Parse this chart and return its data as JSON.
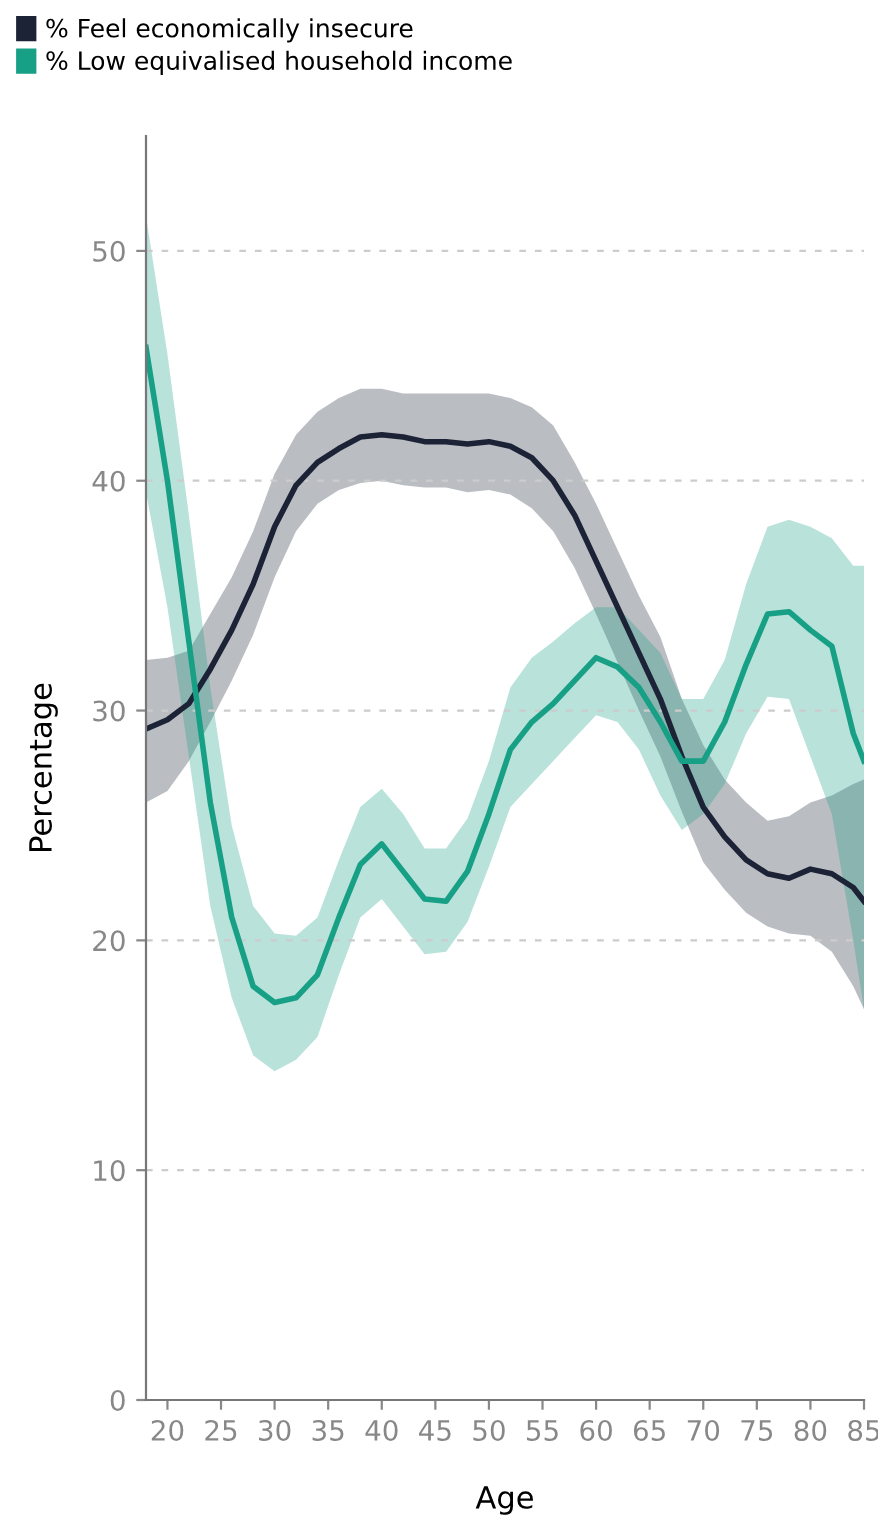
{
  "chart_data": {
    "type": "line",
    "xlabel": "Age",
    "ylabel": "Percentage",
    "xlim": [
      18,
      85
    ],
    "xticks": [
      20,
      25,
      30,
      35,
      40,
      45,
      50,
      55,
      60,
      65,
      70,
      75,
      80,
      85
    ],
    "ylim": [
      0,
      55
    ],
    "yticks": [
      0,
      10,
      20,
      30,
      40,
      50
    ],
    "grid": "y",
    "legend": "top left",
    "line_style": "solid",
    "marker": "none",
    "x": [
      18,
      20,
      22,
      24,
      26,
      28,
      30,
      32,
      34,
      36,
      38,
      40,
      42,
      44,
      46,
      48,
      50,
      52,
      54,
      56,
      58,
      60,
      62,
      64,
      66,
      68,
      70,
      72,
      74,
      76,
      78,
      80,
      82,
      84,
      85
    ],
    "series": [
      {
        "name": "% Feel economically insecure",
        "color": "#1c2336",
        "values": [
          29.2,
          29.6,
          30.3,
          31.8,
          33.5,
          35.5,
          38,
          39.8,
          40.8,
          41.4,
          41.9,
          42,
          41.9,
          41.7,
          41.7,
          41.6,
          41.7,
          41.5,
          41,
          40,
          38.5,
          36.5,
          34.5,
          32.5,
          30.5,
          28,
          25.8,
          24.5,
          23.5,
          22.9,
          22.7,
          23.1,
          22.9,
          22.3,
          21.7
        ],
        "lower": [
          26,
          26.5,
          27.8,
          29.5,
          31.3,
          33.3,
          35.8,
          37.8,
          39,
          39.6,
          39.9,
          40,
          39.8,
          39.7,
          39.7,
          39.5,
          39.6,
          39.4,
          38.8,
          37.8,
          36.2,
          34.2,
          32.1,
          30,
          28,
          25.6,
          23.4,
          22.2,
          21.2,
          20.6,
          20.3,
          20.2,
          19.5,
          18,
          17
        ],
        "upper": [
          32.2,
          32.3,
          32.6,
          34.2,
          35.8,
          37.8,
          40.3,
          42,
          43,
          43.6,
          44,
          44,
          43.8,
          43.8,
          43.8,
          43.8,
          43.8,
          43.6,
          43.2,
          42.4,
          40.8,
          39,
          37,
          35,
          33.2,
          30.5,
          28.5,
          27,
          26,
          25.2,
          25.4,
          26,
          26.3,
          26.8,
          27
        ]
      },
      {
        "name": "% Low equivalised household income",
        "color": "#17a085",
        "values": [
          45.8,
          40,
          33,
          26,
          21,
          18,
          17.3,
          17.5,
          18.5,
          21,
          23.3,
          24.2,
          23,
          21.8,
          21.7,
          23,
          25.5,
          28.3,
          29.5,
          30.3,
          31.3,
          32.3,
          31.9,
          31,
          29.5,
          27.8,
          27.8,
          29.5,
          32,
          34.2,
          34.3,
          33.5,
          32.8,
          29,
          27.8
        ],
        "lower": [
          39.5,
          34.5,
          28,
          21.5,
          17.5,
          15,
          14.3,
          14.8,
          15.8,
          18.5,
          21,
          21.8,
          20.6,
          19.4,
          19.5,
          20.8,
          23.2,
          25.8,
          26.8,
          27.8,
          28.8,
          29.8,
          29.5,
          28.3,
          26.3,
          24.8,
          25.5,
          26.8,
          29,
          30.6,
          30.5,
          28,
          25.5,
          20,
          17
        ],
        "upper": [
          51.5,
          45.5,
          38.5,
          31,
          25,
          21.5,
          20.3,
          20.2,
          21,
          23.5,
          25.8,
          26.6,
          25.5,
          24,
          24,
          25.3,
          27.8,
          31,
          32.3,
          33,
          33.8,
          34.5,
          34.5,
          33.5,
          32.5,
          30.5,
          30.5,
          32.2,
          35.5,
          38,
          38.3,
          38,
          37.5,
          36.3,
          36.3
        ]
      }
    ]
  }
}
